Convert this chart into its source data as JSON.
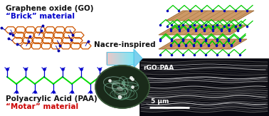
{
  "background_color": "#ffffff",
  "figsize": [
    3.78,
    1.63
  ],
  "dpi": 100,
  "text_go_title": "Graphene oxide (GO)",
  "text_go_sub1": "“Brick” material",
  "text_paa_title": "Polyacrylic Acid (PAA)",
  "text_paa_sub1": "“Motar” material",
  "text_nacre": "Nacre-inspired",
  "text_rgo": "rGO-PAA",
  "text_scale": "5 μm",
  "color_go_title": "#111111",
  "color_brick": "#0000cc",
  "color_paa_title": "#111111",
  "color_motar": "#cc0000",
  "color_nacre_text": "#111111",
  "color_rgo_text": "#ffffff",
  "color_scale_text": "#ffffff",
  "hex_color": "#cc5500",
  "paa_backbone_color": "#00dd00",
  "paa_side_color": "#0000cc",
  "layer_fill": "#cc9966",
  "layer_edge": "#996633",
  "chain_color": "#00cc00",
  "dot_color": "#0000bb",
  "arrow_color": "#5bc8e8",
  "arrow_fade": "#f0c8c8",
  "sem_bg": "#080810",
  "scale_bar_color": "#ffffff",
  "shell_dark": "#223322",
  "shell_mid": "#446644",
  "shell_light": "#88aaaa"
}
